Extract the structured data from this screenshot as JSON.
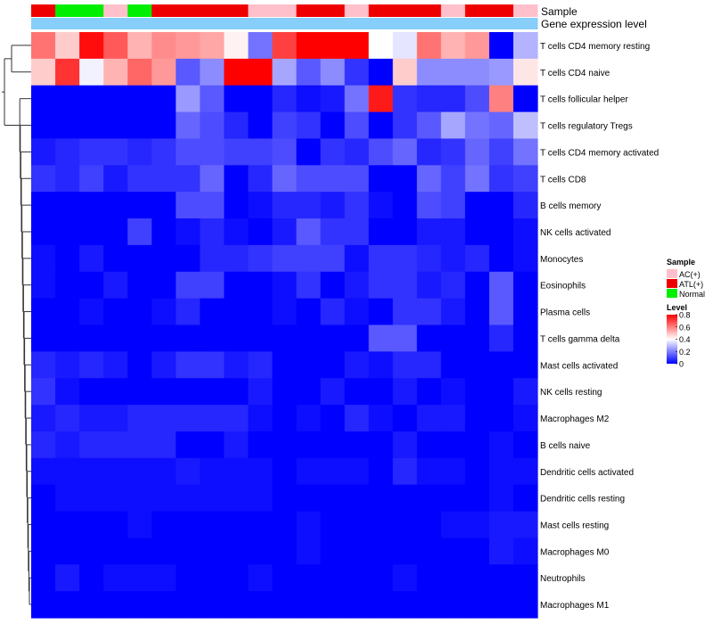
{
  "chart_data": {
    "type": "heatmap",
    "title": "",
    "annotation_row_labels": [
      "Sample",
      "Gene expression level"
    ],
    "sample_annotation": [
      "ATL(+)",
      "Normal",
      "Normal",
      "AC(+)",
      "Normal",
      "ATL(+)",
      "ATL(+)",
      "ATL(+)",
      "ATL(+)",
      "AC(+)",
      "AC(+)",
      "ATL(+)",
      "ATL(+)",
      "AC(+)",
      "ATL(+)",
      "ATL(+)",
      "ATL(+)",
      "AC(+)",
      "ATL(+)",
      "ATL(+)",
      "AC(+)"
    ],
    "expression_annotation": [
      "high",
      "high",
      "high",
      "high",
      "high",
      "high",
      "high",
      "high",
      "high",
      "high",
      "high",
      "high",
      "high",
      "high",
      "high",
      "high",
      "high",
      "high",
      "high",
      "high",
      "high"
    ],
    "rows": [
      "T cells CD4 memory resting",
      "T cells CD4 naive",
      "T cells follicular helper",
      "T cells regulatory  Tregs",
      "T cells CD4 memory activated",
      "T cells CD8",
      "B cells memory",
      "NK cells activated",
      "Monocytes",
      "Eosinophils",
      "Plasma cells",
      "T cells gamma delta",
      "Mast cells activated",
      "NK cells resting",
      "Macrophages M2",
      "B cells naive",
      "Dendritic cells activated",
      "Dendritic cells resting",
      "Mast cells resting",
      "Macrophages M0",
      "Neutrophils",
      "Macrophages M1"
    ],
    "values": [
      [
        0.62,
        0.48,
        0.78,
        0.66,
        0.52,
        0.58,
        0.56,
        0.54,
        0.42,
        0.18,
        0.7,
        0.8,
        0.8,
        0.8,
        0.4,
        0.36,
        0.62,
        0.52,
        0.56,
        0.0,
        0.28
      ],
      [
        0.48,
        0.72,
        0.38,
        0.52,
        0.64,
        0.56,
        0.14,
        0.22,
        0.8,
        0.8,
        0.26,
        0.14,
        0.22,
        0.08,
        0.0,
        0.48,
        0.22,
        0.22,
        0.22,
        0.24,
        0.44
      ],
      [
        0.0,
        0.0,
        0.0,
        0.0,
        0.0,
        0.0,
        0.24,
        0.14,
        0.0,
        0.0,
        0.06,
        0.02,
        0.04,
        0.18,
        0.76,
        0.08,
        0.06,
        0.06,
        0.12,
        0.6,
        0.0
      ],
      [
        0.0,
        0.0,
        0.0,
        0.0,
        0.0,
        0.0,
        0.16,
        0.12,
        0.06,
        0.0,
        0.1,
        0.08,
        0.0,
        0.12,
        0.0,
        0.08,
        0.14,
        0.26,
        0.18,
        0.16,
        0.3
      ],
      [
        0.04,
        0.06,
        0.08,
        0.08,
        0.06,
        0.08,
        0.12,
        0.12,
        0.1,
        0.1,
        0.12,
        0.0,
        0.08,
        0.06,
        0.12,
        0.16,
        0.06,
        0.08,
        0.16,
        0.1,
        0.18
      ],
      [
        0.08,
        0.06,
        0.1,
        0.04,
        0.08,
        0.08,
        0.08,
        0.16,
        0.0,
        0.06,
        0.16,
        0.12,
        0.12,
        0.12,
        0.0,
        0.0,
        0.16,
        0.1,
        0.18,
        0.08,
        0.1
      ],
      [
        0.0,
        0.0,
        0.0,
        0.0,
        0.0,
        0.0,
        0.12,
        0.12,
        0.0,
        0.02,
        0.06,
        0.06,
        0.04,
        0.08,
        0.02,
        0.0,
        0.12,
        0.1,
        0.0,
        0.0,
        0.06
      ],
      [
        0.0,
        0.0,
        0.0,
        0.0,
        0.1,
        0.0,
        0.02,
        0.06,
        0.02,
        0.0,
        0.04,
        0.14,
        0.08,
        0.08,
        0.0,
        0.0,
        0.04,
        0.04,
        0.0,
        0.0,
        0.02
      ],
      [
        0.02,
        0.0,
        0.04,
        0.0,
        0.0,
        0.0,
        0.0,
        0.06,
        0.06,
        0.08,
        0.1,
        0.1,
        0.1,
        0.02,
        0.08,
        0.08,
        0.06,
        0.04,
        0.06,
        0.0,
        0.02
      ],
      [
        0.02,
        0.0,
        0.0,
        0.04,
        0.0,
        0.0,
        0.1,
        0.1,
        0.0,
        0.0,
        0.02,
        0.08,
        0.0,
        0.04,
        0.08,
        0.08,
        0.04,
        0.06,
        0.0,
        0.14,
        0.0
      ],
      [
        0.0,
        0.0,
        0.02,
        0.0,
        0.0,
        0.02,
        0.06,
        0.0,
        0.0,
        0.0,
        0.02,
        0.0,
        0.06,
        0.02,
        0.0,
        0.08,
        0.08,
        0.04,
        0.0,
        0.14,
        0.0
      ],
      [
        0.0,
        0.0,
        0.0,
        0.0,
        0.0,
        0.0,
        0.0,
        0.0,
        0.0,
        0.0,
        0.0,
        0.0,
        0.0,
        0.0,
        0.14,
        0.14,
        0.0,
        0.0,
        0.0,
        0.06,
        0.0
      ],
      [
        0.06,
        0.04,
        0.06,
        0.04,
        0.0,
        0.04,
        0.08,
        0.08,
        0.04,
        0.06,
        0.0,
        0.0,
        0.0,
        0.04,
        0.02,
        0.06,
        0.06,
        0.0,
        0.0,
        0.0,
        0.0
      ],
      [
        0.08,
        0.02,
        0.0,
        0.0,
        0.0,
        0.0,
        0.0,
        0.0,
        0.0,
        0.04,
        0.0,
        0.0,
        0.04,
        0.0,
        0.0,
        0.04,
        0.0,
        0.02,
        0.0,
        0.0,
        0.04
      ],
      [
        0.04,
        0.06,
        0.04,
        0.04,
        0.06,
        0.06,
        0.06,
        0.06,
        0.06,
        0.02,
        0.0,
        0.02,
        0.0,
        0.06,
        0.02,
        0.0,
        0.04,
        0.04,
        0.0,
        0.0,
        0.02
      ],
      [
        0.06,
        0.04,
        0.06,
        0.06,
        0.06,
        0.06,
        0.0,
        0.0,
        0.04,
        0.0,
        0.0,
        0.0,
        0.0,
        0.0,
        0.0,
        0.04,
        0.0,
        0.0,
        0.0,
        0.02,
        0.0
      ],
      [
        0.02,
        0.02,
        0.02,
        0.02,
        0.02,
        0.02,
        0.04,
        0.02,
        0.02,
        0.02,
        0.0,
        0.02,
        0.02,
        0.02,
        0.0,
        0.06,
        0.02,
        0.02,
        0.0,
        0.02,
        0.02
      ],
      [
        0.0,
        0.02,
        0.02,
        0.02,
        0.02,
        0.02,
        0.02,
        0.02,
        0.02,
        0.02,
        0.0,
        0.0,
        0.0,
        0.0,
        0.0,
        0.0,
        0.0,
        0.0,
        0.0,
        0.02,
        0.0
      ],
      [
        0.0,
        0.0,
        0.0,
        0.0,
        0.02,
        0.0,
        0.0,
        0.0,
        0.0,
        0.0,
        0.0,
        0.02,
        0.0,
        0.0,
        0.0,
        0.0,
        0.0,
        0.02,
        0.02,
        0.04,
        0.04
      ],
      [
        0.0,
        0.0,
        0.0,
        0.0,
        0.0,
        0.0,
        0.0,
        0.0,
        0.0,
        0.0,
        0.0,
        0.02,
        0.0,
        0.0,
        0.0,
        0.0,
        0.0,
        0.0,
        0.0,
        0.04,
        0.02
      ],
      [
        0.0,
        0.04,
        0.0,
        0.02,
        0.02,
        0.02,
        0.0,
        0.0,
        0.0,
        0.02,
        0.0,
        0.0,
        0.0,
        0.0,
        0.0,
        0.02,
        0.0,
        0.0,
        0.0,
        0.0,
        0.0
      ],
      [
        0.0,
        0.0,
        0.0,
        0.0,
        0.0,
        0.0,
        0.0,
        0.0,
        0.0,
        0.0,
        0.0,
        0.0,
        0.0,
        0.0,
        0.0,
        0.0,
        0.0,
        0.0,
        0.0,
        0.0,
        0.0
      ]
    ],
    "legend": {
      "sample_title": "Sample",
      "sample_entries": [
        {
          "label": "AC(+)",
          "color": "#FFC0CB"
        },
        {
          "label": "ATL(+)",
          "color": "#EE0000"
        },
        {
          "label": "Normal",
          "color": "#00EE00"
        }
      ],
      "level_title": "Level",
      "level_ticks": [
        "0.8",
        "0.6",
        "0.4",
        "0.2",
        "0"
      ],
      "level_range": [
        0,
        0.8
      ]
    },
    "colors": {
      "low": "#0000FF",
      "mid": "#FFFFFF",
      "high": "#FF0000",
      "expression_bar": "#87CEFA"
    }
  }
}
